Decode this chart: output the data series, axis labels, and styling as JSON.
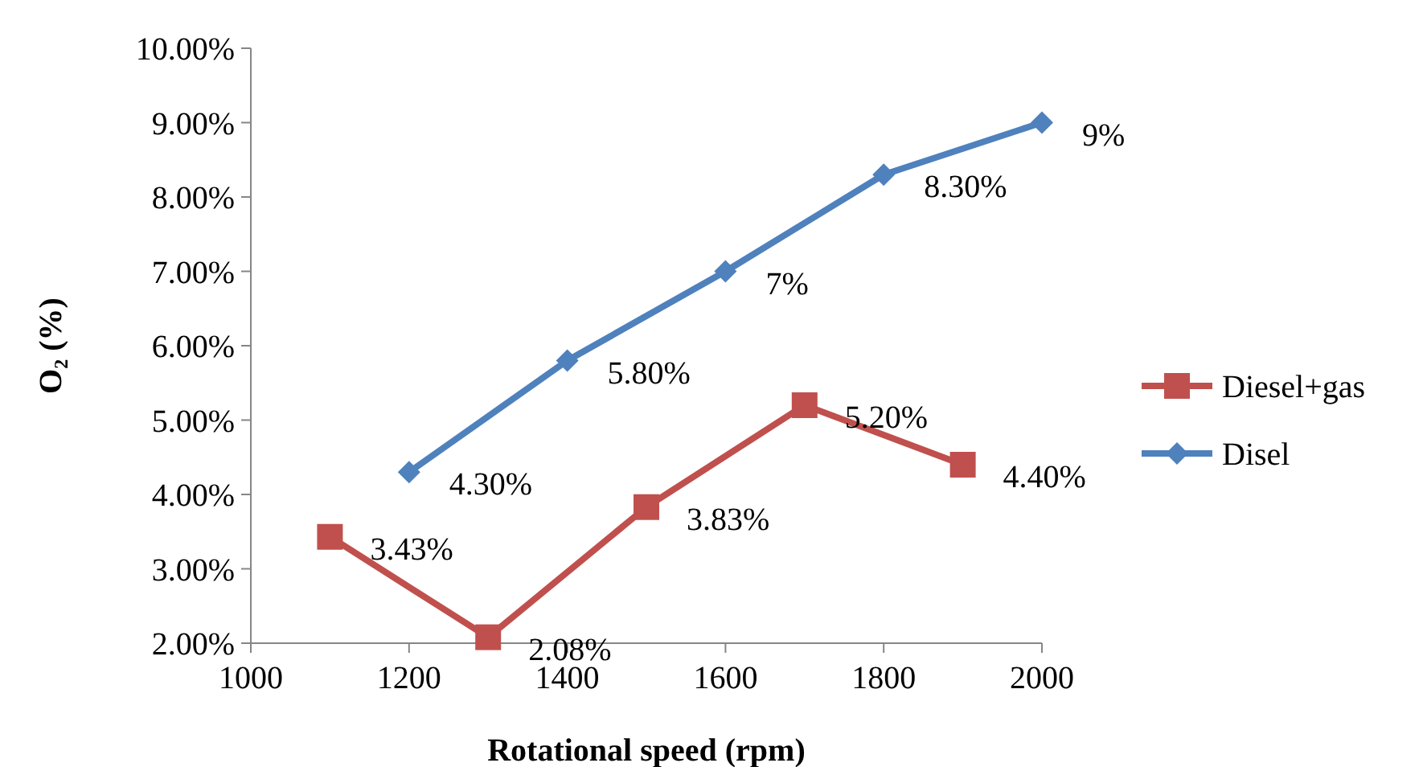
{
  "chart_data": {
    "type": "line",
    "xlabel": "Rotational speed (rpm)",
    "ylabel": "O₂ (%)",
    "xlim": [
      1000,
      2000
    ],
    "xticks": [
      1000,
      1200,
      1400,
      1600,
      1800,
      2000
    ],
    "ylim": [
      2,
      10
    ],
    "yticks": [
      {
        "value": 2,
        "label": "2.00%"
      },
      {
        "value": 3,
        "label": "3.00%"
      },
      {
        "value": 4,
        "label": "4.00%"
      },
      {
        "value": 5,
        "label": "5.00%"
      },
      {
        "value": 6,
        "label": "6.00%"
      },
      {
        "value": 7,
        "label": "7.00%"
      },
      {
        "value": 8,
        "label": "8.00%"
      },
      {
        "value": 9,
        "label": "9.00%"
      },
      {
        "value": 10,
        "label": "10.00%"
      }
    ],
    "grid": false,
    "legend": "right",
    "series": [
      {
        "name": "Diesel+gas",
        "color": "#c0504d",
        "marker": "square",
        "x": [
          1100,
          1300,
          1500,
          1700,
          1900
        ],
        "values": [
          3.43,
          2.08,
          3.83,
          5.2,
          4.4
        ],
        "value_labels": [
          "3.43%",
          "2.08%",
          "3.83%",
          "5.20%",
          "4.40%"
        ]
      },
      {
        "name": "Disel",
        "color": "#4f81bd",
        "marker": "diamond",
        "x": [
          1200,
          1400,
          1600,
          1800,
          2000
        ],
        "values": [
          4.3,
          5.8,
          7,
          8.3,
          9
        ],
        "value_labels": [
          "4.30%",
          "5.80%",
          "7%",
          "8.30%",
          "9%"
        ]
      }
    ]
  }
}
